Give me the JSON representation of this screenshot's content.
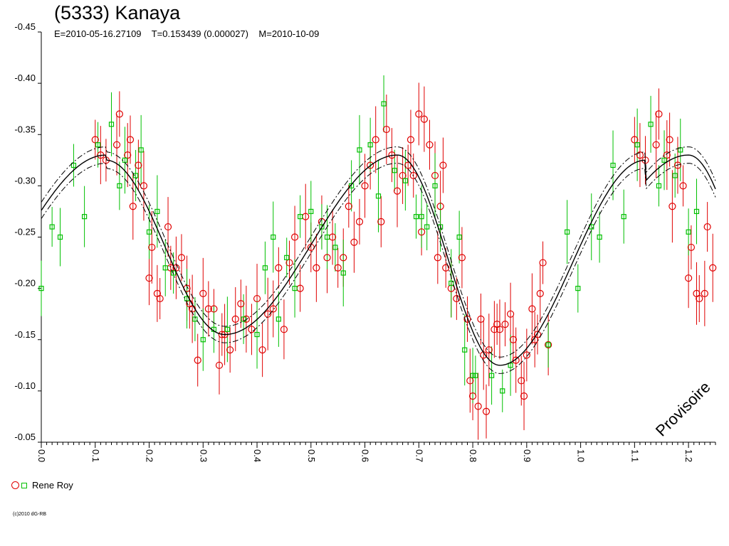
{
  "title": "(5333) Kanaya",
  "subtitle": "E=2010-05-16.27109    T=0.153439 (0.000027)    M=2010-10-09",
  "watermark": "Provisoire",
  "copyright": "(c)2010 dG-RB",
  "legend": {
    "label": "Rene Roy"
  },
  "colors": {
    "series_circle": "#e00000",
    "series_square": "#00c000",
    "axis": "#000000"
  },
  "chart_data": {
    "type": "scatter",
    "title": "(5333) Kanaya",
    "xlim": [
      0.0,
      1.25
    ],
    "ylim": [
      -0.45,
      -0.05
    ],
    "y_inverted": true,
    "x_ticks": [
      "0.0",
      "0.1",
      "0.2",
      "0.3",
      "0.4",
      "0.5",
      "0.6",
      "0.7",
      "0.8",
      "0.9",
      "1.0",
      "1.1",
      "1.2"
    ],
    "y_ticks": [
      "-0.45",
      "-0.40",
      "-0.35",
      "-0.30",
      "-0.25",
      "-0.20",
      "-0.15",
      "-0.10",
      "-0.05"
    ],
    "fit_curve": {
      "amplitude": 0.19,
      "extrema_x": [
        0.12,
        0.34,
        0.66,
        0.85,
        1.12
      ],
      "extrema_y": [
        -0.325,
        -0.155,
        -0.33,
        -0.125,
        -0.325
      ],
      "envelope": 0.008
    },
    "series": [
      {
        "name": "Rene Roy",
        "marker": "circle",
        "points": [
          [
            0.1,
            -0.345
          ],
          [
            0.11,
            -0.33
          ],
          [
            0.12,
            -0.325
          ],
          [
            0.14,
            -0.34
          ],
          [
            0.145,
            -0.37
          ],
          [
            0.16,
            -0.33
          ],
          [
            0.165,
            -0.345
          ],
          [
            0.17,
            -0.28
          ],
          [
            0.18,
            -0.32
          ],
          [
            0.19,
            -0.3
          ],
          [
            0.2,
            -0.21
          ],
          [
            0.205,
            -0.24
          ],
          [
            0.215,
            -0.195
          ],
          [
            0.22,
            -0.19
          ],
          [
            0.235,
            -0.26
          ],
          [
            0.24,
            -0.22
          ],
          [
            0.25,
            -0.22
          ],
          [
            0.26,
            -0.23
          ],
          [
            0.27,
            -0.2
          ],
          [
            0.275,
            -0.185
          ],
          [
            0.28,
            -0.18
          ],
          [
            0.29,
            -0.13
          ],
          [
            0.3,
            -0.195
          ],
          [
            0.31,
            -0.18
          ],
          [
            0.32,
            -0.18
          ],
          [
            0.33,
            -0.125
          ],
          [
            0.335,
            -0.155
          ],
          [
            0.34,
            -0.155
          ],
          [
            0.35,
            -0.14
          ],
          [
            0.36,
            -0.17
          ],
          [
            0.37,
            -0.185
          ],
          [
            0.38,
            -0.17
          ],
          [
            0.39,
            -0.16
          ],
          [
            0.4,
            -0.19
          ],
          [
            0.41,
            -0.14
          ],
          [
            0.42,
            -0.175
          ],
          [
            0.43,
            -0.18
          ],
          [
            0.44,
            -0.22
          ],
          [
            0.45,
            -0.16
          ],
          [
            0.46,
            -0.225
          ],
          [
            0.47,
            -0.25
          ],
          [
            0.48,
            -0.2
          ],
          [
            0.49,
            -0.27
          ],
          [
            0.5,
            -0.24
          ],
          [
            0.51,
            -0.22
          ],
          [
            0.52,
            -0.265
          ],
          [
            0.53,
            -0.23
          ],
          [
            0.54,
            -0.25
          ],
          [
            0.55,
            -0.22
          ],
          [
            0.56,
            -0.23
          ],
          [
            0.57,
            -0.28
          ],
          [
            0.58,
            -0.245
          ],
          [
            0.59,
            -0.265
          ],
          [
            0.6,
            -0.3
          ],
          [
            0.61,
            -0.32
          ],
          [
            0.62,
            -0.345
          ],
          [
            0.63,
            -0.265
          ],
          [
            0.64,
            -0.355
          ],
          [
            0.65,
            -0.33
          ],
          [
            0.66,
            -0.295
          ],
          [
            0.67,
            -0.31
          ],
          [
            0.68,
            -0.32
          ],
          [
            0.685,
            -0.345
          ],
          [
            0.69,
            -0.31
          ],
          [
            0.7,
            -0.37
          ],
          [
            0.705,
            -0.255
          ],
          [
            0.71,
            -0.365
          ],
          [
            0.72,
            -0.34
          ],
          [
            0.73,
            -0.31
          ],
          [
            0.735,
            -0.23
          ],
          [
            0.74,
            -0.28
          ],
          [
            0.745,
            -0.32
          ],
          [
            0.75,
            -0.22
          ],
          [
            0.76,
            -0.2
          ],
          [
            0.77,
            -0.19
          ],
          [
            0.78,
            -0.23
          ],
          [
            0.79,
            -0.17
          ],
          [
            0.795,
            -0.11
          ],
          [
            0.8,
            -0.095
          ],
          [
            0.81,
            -0.085
          ],
          [
            0.815,
            -0.17
          ],
          [
            0.82,
            -0.135
          ],
          [
            0.825,
            -0.08
          ],
          [
            0.83,
            -0.14
          ],
          [
            0.84,
            -0.16
          ],
          [
            0.845,
            -0.165
          ],
          [
            0.85,
            -0.16
          ],
          [
            0.86,
            -0.165
          ],
          [
            0.87,
            -0.175
          ],
          [
            0.875,
            -0.15
          ],
          [
            0.88,
            -0.13
          ],
          [
            0.89,
            -0.11
          ],
          [
            0.895,
            -0.095
          ],
          [
            0.9,
            -0.135
          ],
          [
            0.91,
            -0.18
          ],
          [
            0.915,
            -0.15
          ],
          [
            0.92,
            -0.155
          ],
          [
            0.925,
            -0.195
          ],
          [
            0.93,
            -0.225
          ],
          [
            0.94,
            -0.145
          ],
          [
            1.1,
            -0.345
          ],
          [
            1.11,
            -0.33
          ],
          [
            1.12,
            -0.325
          ],
          [
            1.14,
            -0.34
          ],
          [
            1.145,
            -0.37
          ],
          [
            1.16,
            -0.33
          ],
          [
            1.165,
            -0.345
          ],
          [
            1.17,
            -0.28
          ],
          [
            1.18,
            -0.32
          ],
          [
            1.19,
            -0.3
          ],
          [
            1.2,
            -0.21
          ],
          [
            1.205,
            -0.24
          ],
          [
            1.215,
            -0.195
          ],
          [
            1.22,
            -0.19
          ],
          [
            1.23,
            -0.195
          ],
          [
            1.235,
            -0.26
          ],
          [
            1.245,
            -0.22
          ]
        ]
      },
      {
        "name": "Rene Roy",
        "marker": "square",
        "points": [
          [
            0.0,
            -0.2
          ],
          [
            0.02,
            -0.26
          ],
          [
            0.035,
            -0.25
          ],
          [
            0.06,
            -0.32
          ],
          [
            0.08,
            -0.27
          ],
          [
            0.105,
            -0.34
          ],
          [
            0.13,
            -0.36
          ],
          [
            0.145,
            -0.3
          ],
          [
            0.155,
            -0.325
          ],
          [
            0.175,
            -0.31
          ],
          [
            0.185,
            -0.335
          ],
          [
            0.2,
            -0.255
          ],
          [
            0.215,
            -0.275
          ],
          [
            0.23,
            -0.22
          ],
          [
            0.245,
            -0.215
          ],
          [
            0.27,
            -0.19
          ],
          [
            0.285,
            -0.17
          ],
          [
            0.3,
            -0.15
          ],
          [
            0.32,
            -0.16
          ],
          [
            0.345,
            -0.16
          ],
          [
            0.375,
            -0.17
          ],
          [
            0.4,
            -0.155
          ],
          [
            0.415,
            -0.22
          ],
          [
            0.43,
            -0.25
          ],
          [
            0.44,
            -0.17
          ],
          [
            0.455,
            -0.23
          ],
          [
            0.47,
            -0.2
          ],
          [
            0.48,
            -0.27
          ],
          [
            0.5,
            -0.275
          ],
          [
            0.52,
            -0.26
          ],
          [
            0.53,
            -0.25
          ],
          [
            0.545,
            -0.24
          ],
          [
            0.56,
            -0.215
          ],
          [
            0.575,
            -0.3
          ],
          [
            0.59,
            -0.335
          ],
          [
            0.61,
            -0.34
          ],
          [
            0.625,
            -0.29
          ],
          [
            0.635,
            -0.38
          ],
          [
            0.655,
            -0.315
          ],
          [
            0.675,
            -0.305
          ],
          [
            0.695,
            -0.27
          ],
          [
            0.705,
            -0.27
          ],
          [
            0.715,
            -0.26
          ],
          [
            0.73,
            -0.3
          ],
          [
            0.74,
            -0.26
          ],
          [
            0.76,
            -0.205
          ],
          [
            0.775,
            -0.25
          ],
          [
            0.785,
            -0.14
          ],
          [
            0.8,
            -0.115
          ],
          [
            0.805,
            -0.115
          ],
          [
            0.835,
            -0.115
          ],
          [
            0.855,
            -0.1
          ],
          [
            0.87,
            -0.125
          ],
          [
            0.94,
            -0.145
          ],
          [
            0.975,
            -0.255
          ],
          [
            0.995,
            -0.2
          ],
          [
            1.02,
            -0.26
          ],
          [
            1.035,
            -0.25
          ],
          [
            1.06,
            -0.32
          ],
          [
            1.08,
            -0.27
          ],
          [
            1.105,
            -0.34
          ],
          [
            1.13,
            -0.36
          ],
          [
            1.145,
            -0.3
          ],
          [
            1.155,
            -0.325
          ],
          [
            1.175,
            -0.31
          ],
          [
            1.185,
            -0.335
          ],
          [
            1.2,
            -0.255
          ],
          [
            1.215,
            -0.275
          ]
        ]
      }
    ]
  }
}
